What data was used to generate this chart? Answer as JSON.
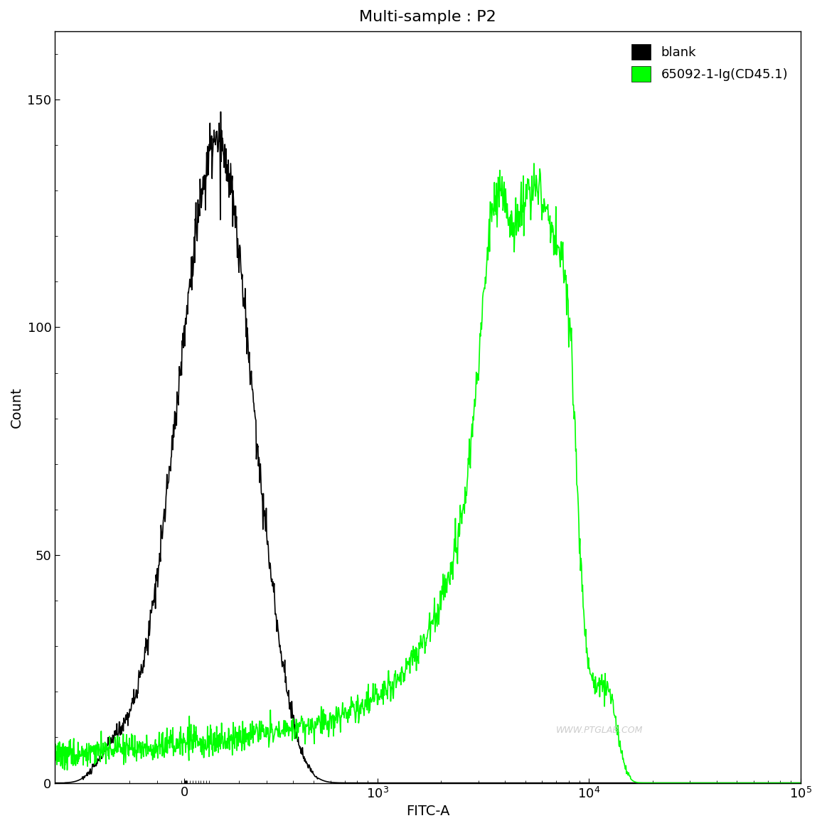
{
  "title": "Multi-sample : P2",
  "xlabel": "FITC-A",
  "ylabel": "Count",
  "ylim": [
    0,
    165
  ],
  "yticks": [
    0,
    50,
    100,
    150
  ],
  "bg_color": "#ffffff",
  "plot_bg_color": "#ffffff",
  "border_color": "#000000",
  "watermark": "WWW.PTGLAB.COM",
  "legend_entries": [
    "blank",
    "65092-1-Ig(CD45.1)"
  ],
  "legend_colors": [
    "#000000",
    "#00ff00"
  ],
  "black_color": "#000000",
  "green_color": "#00ff00",
  "line_width": 1.2,
  "title_fontsize": 16,
  "label_fontsize": 14,
  "tick_fontsize": 13,
  "legend_fontsize": 13,
  "linthresh": 300,
  "linscale": 0.35
}
